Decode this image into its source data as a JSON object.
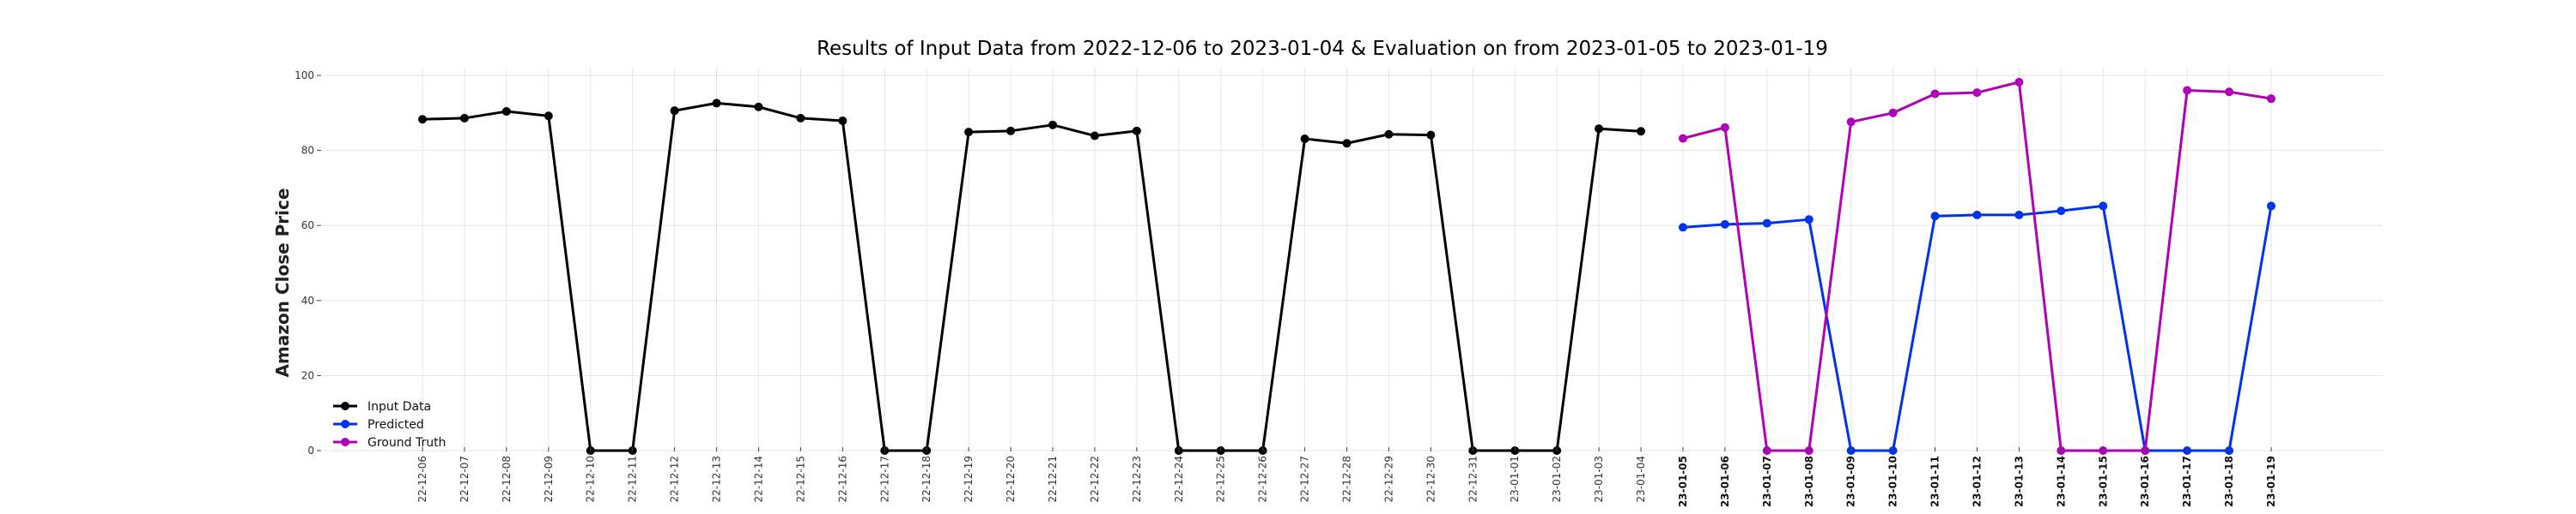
{
  "chart_data": {
    "type": "line",
    "title": "Results of Input Data from 2022-12-06 to 2023-01-04 & Evaluation on from 2023-01-05 to 2023-01-19",
    "xlabel": "",
    "ylabel": "Amazon Close Price",
    "ylim": [
      0,
      100
    ],
    "yticks": [
      0,
      20,
      40,
      60,
      80,
      100
    ],
    "grid": true,
    "legend_position": "lower-left",
    "x_tick_labels": [
      "22-12-06",
      "22-12-07",
      "22-12-08",
      "22-12-09",
      "22-12-10",
      "22-12-11",
      "22-12-12",
      "22-12-13",
      "22-12-14",
      "22-12-15",
      "22-12-16",
      "22-12-17",
      "22-12-18",
      "22-12-19",
      "22-12-20",
      "22-12-21",
      "22-12-22",
      "22-12-23",
      "22-12-24",
      "22-12-25",
      "22-12-26",
      "22-12-27",
      "22-12-28",
      "22-12-29",
      "22-12-30",
      "22-12-31",
      "23-01-01",
      "23-01-02",
      "23-01-03",
      "23-01-04",
      "23-01-05",
      "23-01-06",
      "23-01-07",
      "23-01-08",
      "23-01-09",
      "23-01-10",
      "23-01-11",
      "23-01-12",
      "23-01-13",
      "23-01-14",
      "23-01-15",
      "23-01-16",
      "23-01-17",
      "23-01-18",
      "23-01-19"
    ],
    "bold_from_index": 30,
    "series": [
      {
        "name": "Input Data",
        "color": "#000000",
        "x": [
          "2022-12-06",
          "2022-12-07",
          "2022-12-08",
          "2022-12-09",
          "2022-12-10",
          "2022-12-11",
          "2022-12-12",
          "2022-12-13",
          "2022-12-14",
          "2022-12-15",
          "2022-12-16",
          "2022-12-17",
          "2022-12-18",
          "2022-12-19",
          "2022-12-20",
          "2022-12-21",
          "2022-12-22",
          "2022-12-23",
          "2022-12-24",
          "2022-12-25",
          "2022-12-26",
          "2022-12-27",
          "2022-12-28",
          "2022-12-29",
          "2022-12-30",
          "2022-12-31",
          "2023-01-01",
          "2023-01-02",
          "2023-01-03",
          "2023-01-04"
        ],
        "values": [
          88.3,
          88.6,
          90.4,
          89.2,
          0,
          0,
          90.6,
          92.6,
          91.6,
          88.6,
          87.9,
          0,
          0,
          84.9,
          85.2,
          86.8,
          83.9,
          85.2,
          0,
          0,
          0,
          83.1,
          81.9,
          84.3,
          84.1,
          0,
          0,
          0,
          85.8,
          85.1
        ]
      },
      {
        "name": "Predicted",
        "color": "#0033ee",
        "x": [
          "2023-01-05",
          "2023-01-06",
          "2023-01-07",
          "2023-01-08",
          "2023-01-09",
          "2023-01-10",
          "2023-01-11",
          "2023-01-12",
          "2023-01-13",
          "2023-01-14",
          "2023-01-15",
          "2023-01-16",
          "2023-01-17",
          "2023-01-18",
          "2023-01-19"
        ],
        "values": [
          59.5,
          60.3,
          60.6,
          61.6,
          0,
          0,
          62.5,
          62.8,
          62.8,
          63.9,
          65.2,
          0,
          0,
          0,
          65.2
        ]
      },
      {
        "name": "Ground Truth",
        "color": "#b000b8",
        "x": [
          "2023-01-05",
          "2023-01-06",
          "2023-01-07",
          "2023-01-08",
          "2023-01-09",
          "2023-01-10",
          "2023-01-11",
          "2023-01-12",
          "2023-01-13",
          "2023-01-14",
          "2023-01-15",
          "2023-01-16",
          "2023-01-17",
          "2023-01-18",
          "2023-01-19"
        ],
        "values": [
          83.2,
          86.1,
          0,
          0,
          87.6,
          90.0,
          95.1,
          95.4,
          98.2,
          0,
          0,
          0,
          96.0,
          95.6,
          93.8
        ]
      }
    ]
  }
}
